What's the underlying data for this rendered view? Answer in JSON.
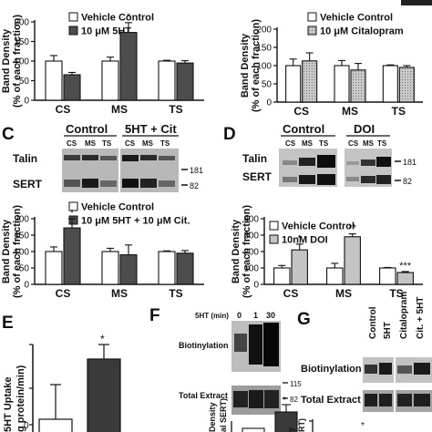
{
  "panels": {
    "A": {
      "letter": "",
      "legend": [
        "Vehicle Control",
        "10 μM 5HT"
      ],
      "ylabel": [
        "Band Density",
        "(% of each fraction)"
      ],
      "yticks": [
        "0",
        "50",
        "100",
        "150",
        "200"
      ]
    },
    "B": {
      "letter": "",
      "legend": [
        "Vehicle Control",
        "10 μM Citalopram"
      ],
      "ylabel": [
        "Band Density",
        "(% of each fraction)"
      ],
      "yticks": [
        "0",
        "50",
        "100",
        "150",
        "200"
      ]
    },
    "C": {
      "letter": "C",
      "groups": [
        "Control",
        "5HT + Cit"
      ],
      "lanes": [
        "CS",
        "MS",
        "TS",
        "CS",
        "MS",
        "TS"
      ],
      "rows": [
        "Talin",
        "SERT"
      ],
      "markers": [
        "181",
        "82"
      ],
      "legend": [
        "Vehicle Control",
        "10 μM 5HT + 10 μM Cit."
      ],
      "ylabel": [
        "Band Density",
        "(% of each fraction)"
      ],
      "yticks": [
        "0",
        "50",
        "100",
        "150",
        "200"
      ]
    },
    "D": {
      "letter": "D",
      "groups": [
        "Control",
        "DOI"
      ],
      "lanes": [
        "CS",
        "MS",
        "TS",
        "CS",
        "MS",
        "TS"
      ],
      "rows": [
        "Talin",
        "SERT"
      ],
      "markers": [
        "181",
        "82"
      ],
      "legend": [
        "Vehicle Control",
        "10nM DOI"
      ],
      "ylabel": [
        "Band Density",
        "(% of each fraction)"
      ],
      "yticks": [
        "0",
        "100",
        "200",
        "300",
        "400"
      ]
    },
    "E": {
      "letter": "E",
      "ylabel": [
        "5HT Uptake",
        "g protein/min)"
      ],
      "yticks": [
        "0"
      ],
      "star": "*"
    },
    "F": {
      "letter": "F",
      "time_label": "5HT (min)",
      "times": [
        "0",
        "1",
        "30"
      ],
      "rows": [
        "Biotinylation",
        "Total Extract"
      ],
      "markers": [
        "115",
        "82",
        "40"
      ],
      "ylabel": [
        "Density",
        "al SERT)"
      ],
      "star": "*"
    },
    "G": {
      "letter": "G",
      "lanes": [
        "Control",
        "5HT",
        "Citalopram",
        "Cit. + 5HT"
      ],
      "rows": [
        "Biotinylation",
        "Total Extract"
      ],
      "ylabel": [
        "y",
        "RT)"
      ],
      "star": "*"
    }
  },
  "chart_data": [
    {
      "type": "bar",
      "panel": "A",
      "categories": [
        "CS",
        "MS",
        "TS"
      ],
      "ylim": [
        0,
        200
      ],
      "series": [
        {
          "name": "Vehicle Control",
          "values": [
            100,
            100,
            100
          ],
          "errors": [
            14,
            10,
            2
          ]
        },
        {
          "name": "10 μM 5HT",
          "values": [
            65,
            173,
            95
          ],
          "errors": [
            6,
            25,
            6
          ]
        }
      ],
      "annotations": [
        {
          "category": "MS",
          "series": 1,
          "text": "*"
        }
      ]
    },
    {
      "type": "bar",
      "panel": "B",
      "categories": [
        "CS",
        "MS",
        "TS"
      ],
      "ylim": [
        0,
        200
      ],
      "series": [
        {
          "name": "Vehicle Control",
          "values": [
            100,
            100,
            100
          ],
          "errors": [
            18,
            14,
            2
          ]
        },
        {
          "name": "10 μM Citalopram",
          "values": [
            113,
            88,
            95
          ],
          "errors": [
            22,
            18,
            5
          ]
        }
      ],
      "annotations": []
    },
    {
      "type": "bar",
      "panel": "C",
      "categories": [
        "CS",
        "MS",
        "TS"
      ],
      "ylim": [
        0,
        200
      ],
      "series": [
        {
          "name": "Vehicle Control",
          "values": [
            100,
            100,
            100
          ],
          "errors": [
            14,
            10,
            2
          ]
        },
        {
          "name": "10 μM 5HT + 10 μM Cit.",
          "values": [
            172,
            90,
            95
          ],
          "errors": [
            28,
            30,
            8
          ]
        }
      ],
      "annotations": [
        {
          "category": "CS",
          "series": 1,
          "text": "*"
        }
      ]
    },
    {
      "type": "bar",
      "panel": "D",
      "categories": [
        "CS",
        "MS",
        "TS"
      ],
      "ylim": [
        0,
        400
      ],
      "series": [
        {
          "name": "Vehicle Control",
          "values": [
            100,
            100,
            100
          ],
          "errors": [
            15,
            28,
            3
          ]
        },
        {
          "name": "10nM DOI",
          "values": [
            210,
            290,
            72
          ],
          "errors": [
            35,
            18,
            6
          ]
        }
      ],
      "annotations": [
        {
          "category": "CS",
          "series": 1,
          "text": "*"
        },
        {
          "category": "MS",
          "series": 1,
          "text": "**"
        },
        {
          "category": "TS",
          "series": 1,
          "text": "***"
        }
      ]
    }
  ]
}
